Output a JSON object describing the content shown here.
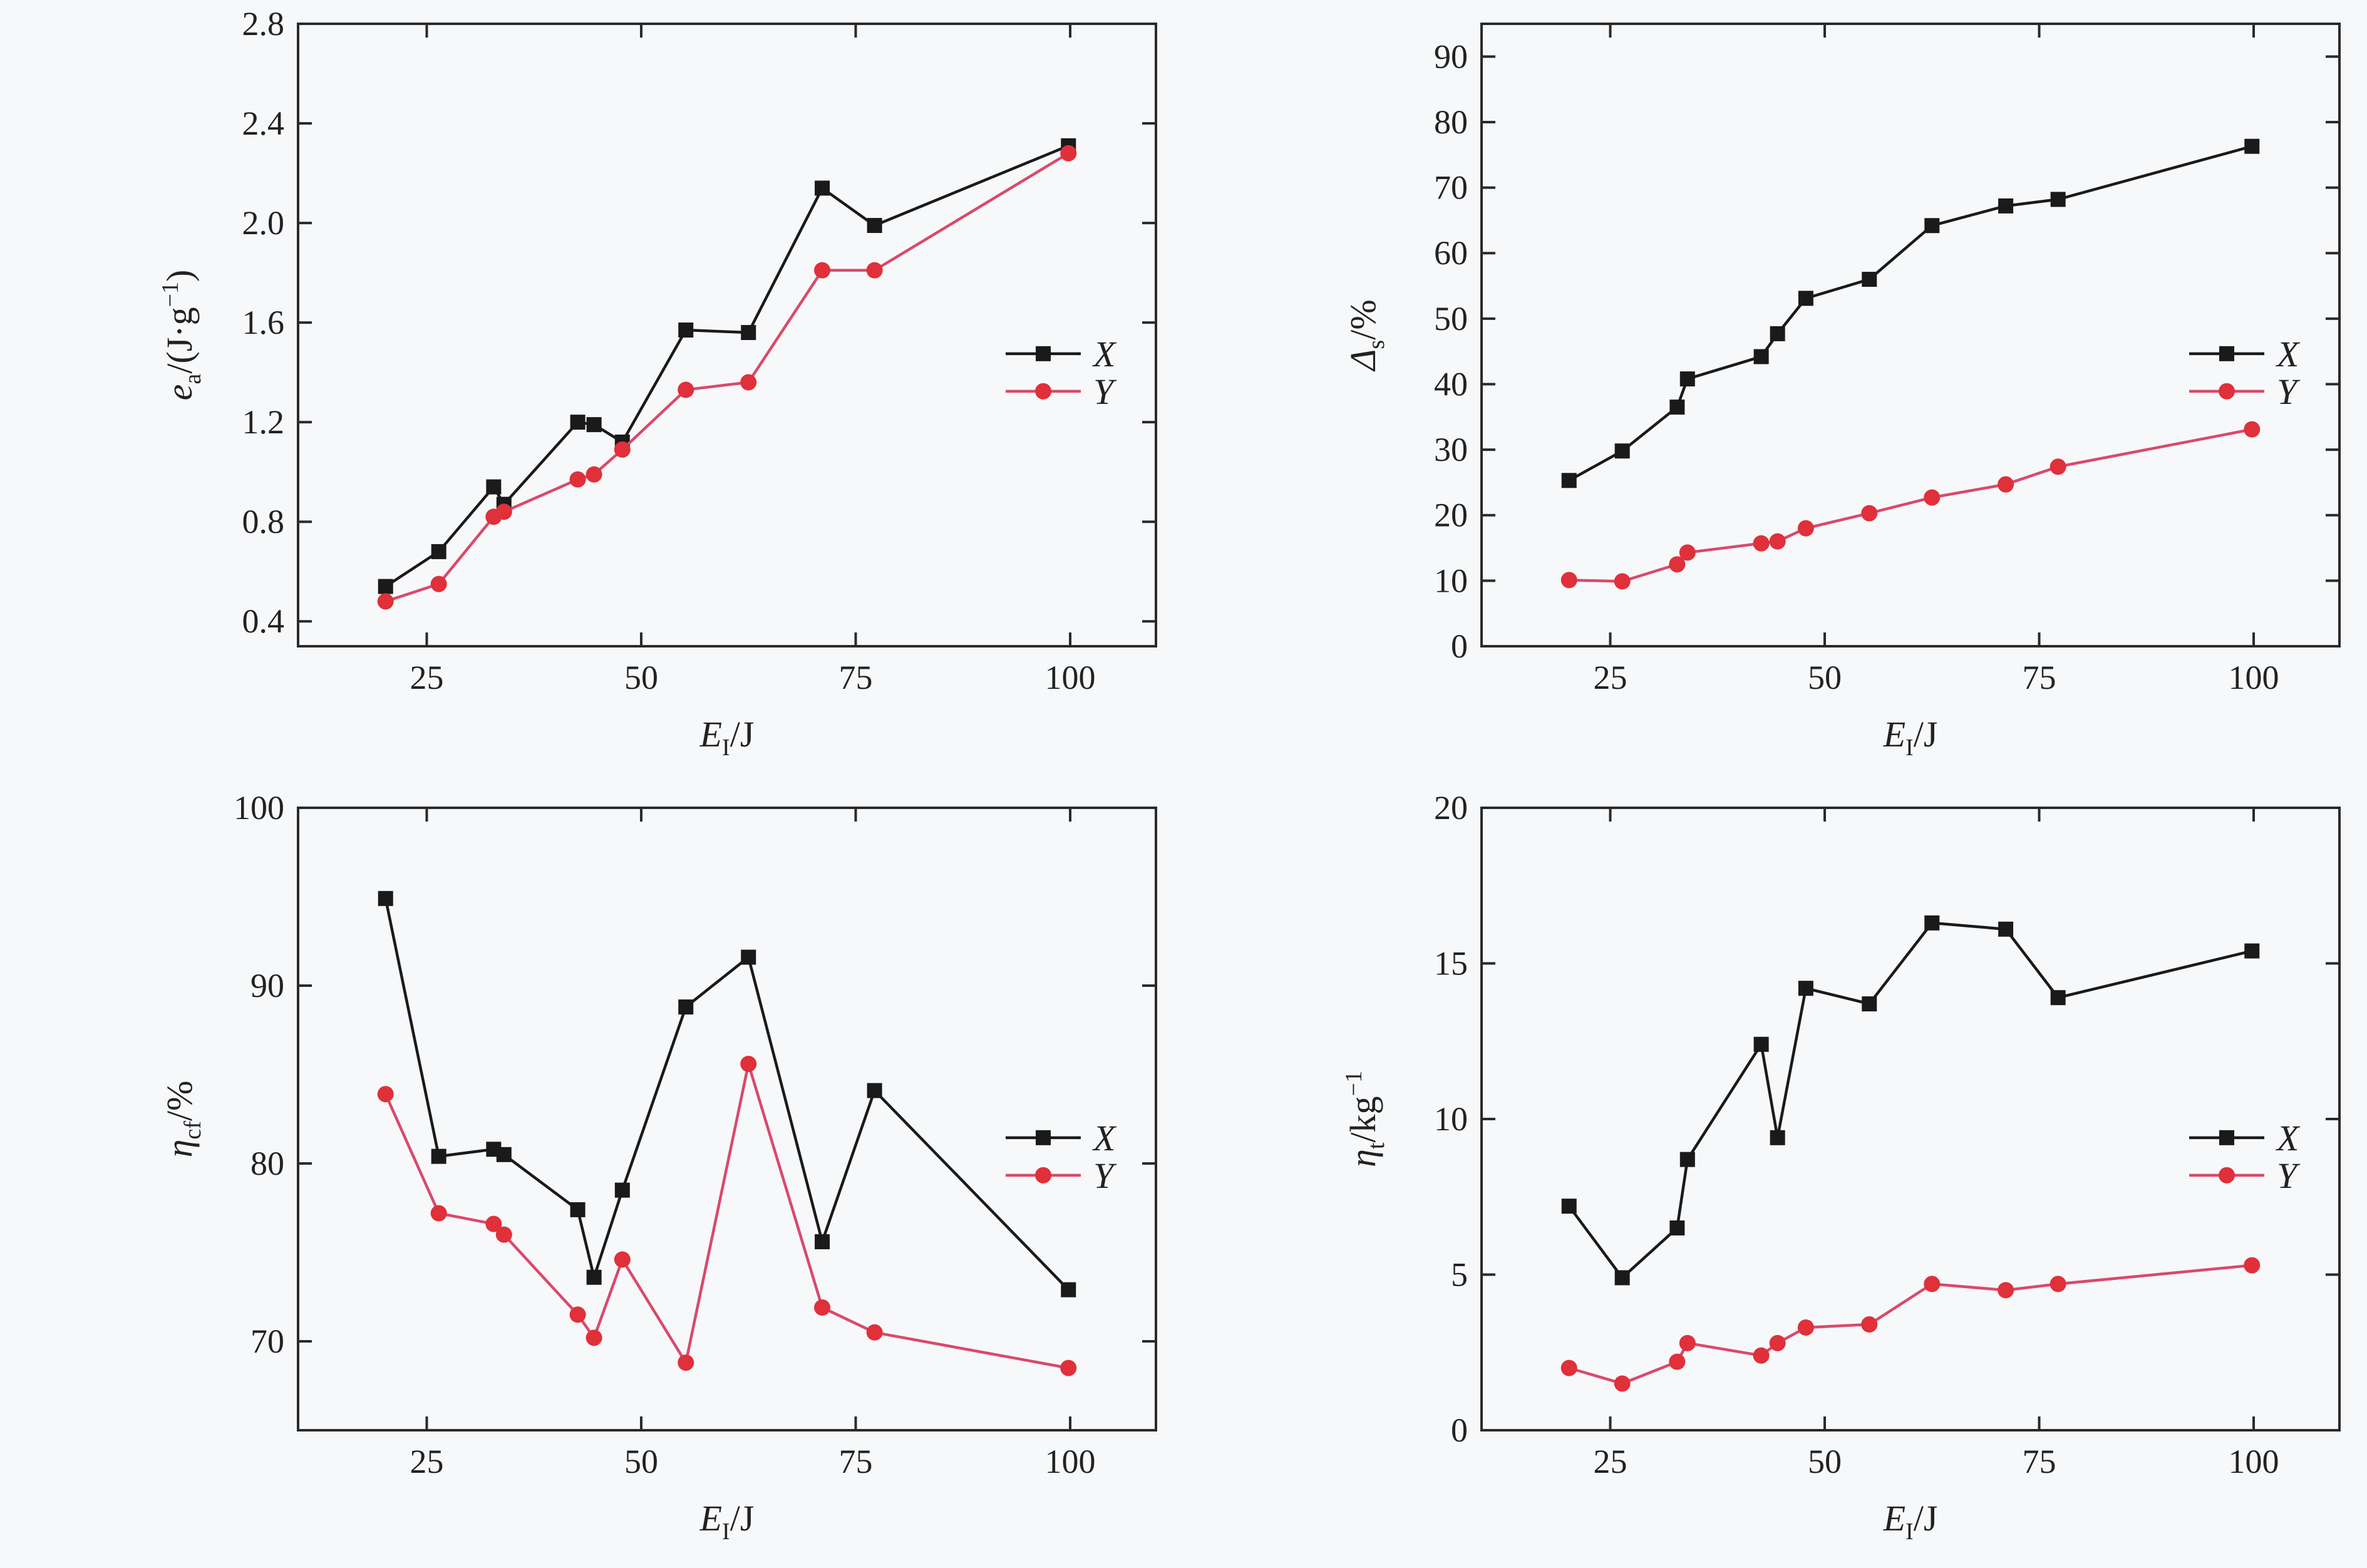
{
  "colors": {
    "X": "#1a1a1a",
    "Y": "#e0303a",
    "Y_line": "#d94a6a"
  },
  "chart_data": [
    {
      "type": "line",
      "xlabel": {
        "main": "E",
        "sub": "I",
        "unit": "/J"
      },
      "ylabel": {
        "main": "e",
        "sub": "a",
        "unit": "/(J·g",
        "sup": "−1",
        "close": ")"
      },
      "xlim": [
        10,
        110
      ],
      "ylim": [
        0.3,
        2.8
      ],
      "xticks": [
        25,
        50,
        75,
        100
      ],
      "yticks": [
        0.4,
        0.8,
        1.2,
        1.6,
        2.0,
        2.4,
        2.8
      ],
      "ytick_labels": [
        "0.4",
        "0.8",
        "1.2",
        "1.6",
        "2.0",
        "2.4",
        "2.8"
      ],
      "legend": "center-right",
      "series": [
        {
          "name": "X",
          "marker": "square",
          "x": [
            20.2,
            26.4,
            32.8,
            34,
            42.6,
            44.5,
            47.8,
            55.2,
            62.5,
            71.1,
            77.2,
            99.8
          ],
          "y": [
            0.54,
            0.68,
            0.94,
            0.87,
            1.2,
            1.19,
            1.12,
            1.57,
            1.56,
            2.14,
            1.99,
            2.31
          ]
        },
        {
          "name": "Y",
          "marker": "circle",
          "x": [
            20.2,
            26.4,
            32.8,
            34,
            42.6,
            44.5,
            47.8,
            55.2,
            62.5,
            71.1,
            77.2,
            99.8
          ],
          "y": [
            0.48,
            0.55,
            0.82,
            0.84,
            0.97,
            0.99,
            1.09,
            1.33,
            1.36,
            1.81,
            1.81,
            2.28
          ]
        }
      ]
    },
    {
      "type": "line",
      "xlabel": {
        "main": "E",
        "sub": "I",
        "unit": "/J"
      },
      "ylabel": {
        "main": "Δ",
        "sub": "s",
        "unit": "/%"
      },
      "xlim": [
        10,
        110
      ],
      "ylim": [
        0,
        95
      ],
      "xticks": [
        25,
        50,
        75,
        100
      ],
      "yticks": [
        0,
        10,
        20,
        30,
        40,
        50,
        60,
        70,
        80,
        90
      ],
      "ytick_labels": [
        "0",
        "10",
        "20",
        "30",
        "40",
        "50",
        "60",
        "70",
        "80",
        "90"
      ],
      "legend": "center-right",
      "series": [
        {
          "name": "X",
          "marker": "square",
          "x": [
            20.2,
            26.4,
            32.8,
            34,
            42.6,
            44.5,
            47.8,
            55.2,
            62.5,
            71.1,
            77.2,
            99.8
          ],
          "y": [
            25.3,
            29.8,
            36.5,
            40.8,
            44.2,
            47.7,
            53.1,
            56.0,
            64.2,
            67.2,
            68.2,
            76.3
          ]
        },
        {
          "name": "Y",
          "marker": "circle",
          "x": [
            20.2,
            26.4,
            32.8,
            34,
            42.6,
            44.5,
            47.8,
            55.2,
            62.5,
            71.1,
            77.2,
            99.8
          ],
          "y": [
            10.1,
            9.9,
            12.5,
            14.3,
            15.7,
            16.0,
            18.0,
            20.3,
            22.7,
            24.7,
            27.4,
            33.1
          ]
        }
      ]
    },
    {
      "type": "line",
      "xlabel": {
        "main": "E",
        "sub": "I",
        "unit": "/J"
      },
      "ylabel": {
        "main": "η",
        "sub": "cf",
        "unit": "/%"
      },
      "xlim": [
        10,
        110
      ],
      "ylim": [
        65,
        100
      ],
      "xticks": [
        25,
        50,
        75,
        100
      ],
      "yticks": [
        70,
        80,
        90,
        100
      ],
      "ytick_labels": [
        "70",
        "80",
        "90",
        "100"
      ],
      "legend": "center-right",
      "series": [
        {
          "name": "X",
          "marker": "square",
          "x": [
            20.2,
            26.4,
            32.8,
            34,
            42.6,
            44.5,
            47.8,
            55.2,
            62.5,
            71.1,
            77.2,
            99.8
          ],
          "y": [
            94.9,
            80.4,
            80.8,
            80.5,
            77.4,
            73.6,
            78.5,
            88.8,
            91.6,
            75.6,
            84.1,
            72.9
          ]
        },
        {
          "name": "Y",
          "marker": "circle",
          "x": [
            20.2,
            26.4,
            32.8,
            34,
            42.6,
            44.5,
            47.8,
            55.2,
            62.5,
            71.1,
            77.2,
            99.8
          ],
          "y": [
            83.9,
            77.2,
            76.6,
            76.0,
            71.5,
            70.2,
            74.6,
            68.8,
            85.6,
            71.9,
            70.5,
            68.5
          ]
        }
      ]
    },
    {
      "type": "line",
      "xlabel": {
        "main": "E",
        "sub": "I",
        "unit": "/J"
      },
      "ylabel": {
        "main": "η",
        "sub": "t",
        "unit": "/kg",
        "sup": "−1"
      },
      "xlim": [
        10,
        110
      ],
      "ylim": [
        0,
        20
      ],
      "xticks": [
        25,
        50,
        75,
        100
      ],
      "yticks": [
        0,
        5,
        10,
        15,
        20
      ],
      "ytick_labels": [
        "0",
        "5",
        "10",
        "15",
        "20"
      ],
      "legend": "center-right",
      "series": [
        {
          "name": "X",
          "marker": "square",
          "x": [
            20.2,
            26.4,
            32.8,
            34,
            42.6,
            44.5,
            47.8,
            55.2,
            62.5,
            71.1,
            77.2,
            99.8
          ],
          "y": [
            7.2,
            4.9,
            6.5,
            8.7,
            12.4,
            9.4,
            14.2,
            13.7,
            16.3,
            16.1,
            13.9,
            15.4
          ]
        },
        {
          "name": "Y",
          "marker": "circle",
          "x": [
            20.2,
            26.4,
            32.8,
            34,
            42.6,
            44.5,
            47.8,
            55.2,
            62.5,
            71.1,
            77.2,
            99.8
          ],
          "y": [
            2.0,
            1.5,
            2.2,
            2.8,
            2.4,
            2.8,
            3.3,
            3.4,
            4.7,
            4.5,
            4.7,
            5.3
          ]
        }
      ]
    }
  ]
}
